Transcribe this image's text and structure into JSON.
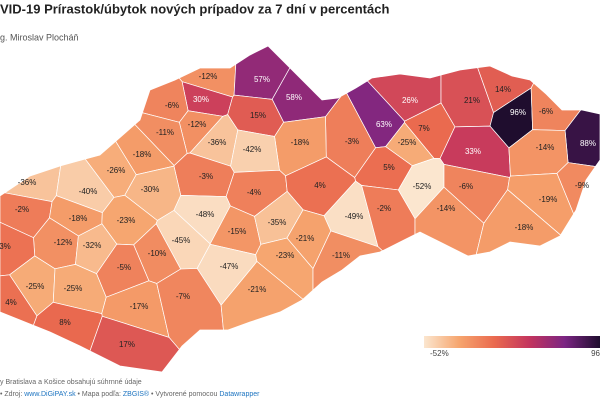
{
  "header": {
    "title": "VID-19 Prírastok/úbytok nových prípadov za 7 dní v percentách",
    "byline": "g. Miroslav Plocháň"
  },
  "map": {
    "type": "choropleth",
    "color_scale": [
      "#fbe6cf",
      "#f6a56e",
      "#ea6a4f",
      "#c3345e",
      "#7b2583",
      "#1f0d2e"
    ],
    "legend": {
      "min": -52,
      "max": 96,
      "min_label": "-52%",
      "max_label": "96"
    },
    "districts": [
      {
        "label": "-12%",
        "value": -12
      },
      {
        "label": "57%",
        "value": 57
      },
      {
        "label": "58%",
        "value": 58
      },
      {
        "label": "30%",
        "value": 30
      },
      {
        "label": "-6%",
        "value": -6
      },
      {
        "label": "15%",
        "value": 15
      },
      {
        "label": "-12%",
        "value": -12
      },
      {
        "label": "-11%",
        "value": -11
      },
      {
        "label": "26%",
        "value": 26
      },
      {
        "label": "21%",
        "value": 21
      },
      {
        "label": "14%",
        "value": 14
      },
      {
        "label": "96%",
        "value": 96
      },
      {
        "label": "-6%",
        "value": -6
      },
      {
        "label": "63%",
        "value": 63
      },
      {
        "label": "7%",
        "value": 7
      },
      {
        "label": "88%",
        "value": 88
      },
      {
        "label": "-3%",
        "value": -3
      },
      {
        "label": "-25%",
        "value": -25
      },
      {
        "label": "33%",
        "value": 33
      },
      {
        "label": "-14%",
        "value": -14
      },
      {
        "label": "-18%",
        "value": -18
      },
      {
        "label": "-36%",
        "value": -36
      },
      {
        "label": "-42%",
        "value": -42
      },
      {
        "label": "-18%",
        "value": -18
      },
      {
        "label": "-26%",
        "value": -26
      },
      {
        "label": "-3%",
        "value": -3
      },
      {
        "label": "5%",
        "value": 5
      },
      {
        "label": "-52%",
        "value": -52
      },
      {
        "label": "-6%",
        "value": -6
      },
      {
        "label": "-9%",
        "value": -9
      },
      {
        "label": "-36%",
        "value": -36
      },
      {
        "label": "-40%",
        "value": -40
      },
      {
        "label": "-30%",
        "value": -30
      },
      {
        "label": "-4%",
        "value": -4
      },
      {
        "label": "4%",
        "value": 4
      },
      {
        "label": "-2%",
        "value": -2
      },
      {
        "label": "-18%",
        "value": -18
      },
      {
        "label": "-23%",
        "value": -23
      },
      {
        "label": "-48%",
        "value": -48
      },
      {
        "label": "-49%",
        "value": -49
      },
      {
        "label": "-2%",
        "value": -2
      },
      {
        "label": "-14%",
        "value": -14
      },
      {
        "label": "-19%",
        "value": -19
      },
      {
        "label": "-18%",
        "value": -18
      },
      {
        "label": "-12%",
        "value": -12
      },
      {
        "label": "-32%",
        "value": -32
      },
      {
        "label": "-45%",
        "value": -45
      },
      {
        "label": "-15%",
        "value": -15
      },
      {
        "label": "-35%",
        "value": -35
      },
      {
        "label": "-21%",
        "value": -21
      },
      {
        "label": "-10%",
        "value": -10
      },
      {
        "label": "3%",
        "value": 3
      },
      {
        "label": "-5%",
        "value": -5
      },
      {
        "label": "-47%",
        "value": -47
      },
      {
        "label": "-23%",
        "value": -23
      },
      {
        "label": "-11%",
        "value": -11
      },
      {
        "label": "-25%",
        "value": -25
      },
      {
        "label": "-25%",
        "value": -25
      },
      {
        "label": "-17%",
        "value": -17
      },
      {
        "label": "-7%",
        "value": -7
      },
      {
        "label": "-21%",
        "value": -21
      },
      {
        "label": "4%",
        "value": 4
      },
      {
        "label": "8%",
        "value": 8
      },
      {
        "label": "17%",
        "value": 17
      }
    ]
  },
  "footer": {
    "note": "y Bratislava a Košice obsahujú súhrnné údaje",
    "source": [
      "• Zdroj: ",
      "www.DiGiPAY.sk",
      " • Mapa podľa: ",
      "ZBGIS®",
      " • Vytvorené pomocou ",
      "Datawrapper"
    ]
  }
}
